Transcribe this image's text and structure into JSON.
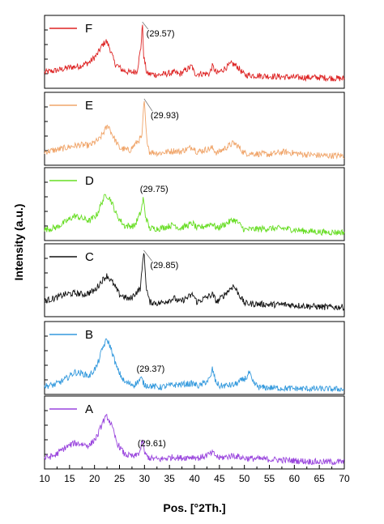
{
  "chart_data": {
    "type": "line",
    "xlabel": "Pos. [°2Th.]",
    "ylabel": "Intensity (a.u.)",
    "xlim": [
      10,
      70
    ],
    "x_ticks": [
      10,
      15,
      20,
      25,
      30,
      35,
      40,
      45,
      50,
      55,
      60,
      65,
      70
    ],
    "grid": false,
    "legend_placement": "top-left of each panel",
    "panels": [
      {
        "name": "F",
        "color": "#dd2222",
        "annotation": "(29.57)",
        "peak_x": 29.57,
        "profile": [
          [
            10,
            0.2
          ],
          [
            13,
            0.24
          ],
          [
            15,
            0.28
          ],
          [
            17,
            0.3
          ],
          [
            19,
            0.36
          ],
          [
            20.5,
            0.48
          ],
          [
            21.5,
            0.62
          ],
          [
            22.3,
            0.7
          ],
          [
            23.0,
            0.6
          ],
          [
            24,
            0.35
          ],
          [
            25.5,
            0.24
          ],
          [
            27,
            0.2
          ],
          [
            28.5,
            0.22
          ],
          [
            29.3,
            0.6
          ],
          [
            29.57,
            1.0
          ],
          [
            29.85,
            0.45
          ],
          [
            30.5,
            0.18
          ],
          [
            33,
            0.16
          ],
          [
            36,
            0.2
          ],
          [
            37,
            0.17
          ],
          [
            39.5,
            0.3
          ],
          [
            40,
            0.18
          ],
          [
            43,
            0.18
          ],
          [
            43.6,
            0.3
          ],
          [
            44.5,
            0.18
          ],
          [
            47.5,
            0.34
          ],
          [
            48.5,
            0.3
          ],
          [
            50,
            0.16
          ],
          [
            55,
            0.14
          ],
          [
            60,
            0.12
          ],
          [
            65,
            0.12
          ],
          [
            70,
            0.1
          ]
        ]
      },
      {
        "name": "E",
        "color": "#f0a56a",
        "annotation": "(29.93)",
        "peak_x": 29.93,
        "profile": [
          [
            10,
            0.16
          ],
          [
            13,
            0.2
          ],
          [
            15,
            0.24
          ],
          [
            17,
            0.27
          ],
          [
            19,
            0.26
          ],
          [
            21,
            0.36
          ],
          [
            22.2,
            0.52
          ],
          [
            22.8,
            0.58
          ],
          [
            23.5,
            0.44
          ],
          [
            25,
            0.22
          ],
          [
            27,
            0.18
          ],
          [
            29.5,
            0.4
          ],
          [
            29.93,
            1.0
          ],
          [
            30.4,
            0.4
          ],
          [
            31,
            0.16
          ],
          [
            33,
            0.14
          ],
          [
            36,
            0.18
          ],
          [
            37,
            0.16
          ],
          [
            39.7,
            0.24
          ],
          [
            40.5,
            0.16
          ],
          [
            43.6,
            0.22
          ],
          [
            44.5,
            0.14
          ],
          [
            47.8,
            0.3
          ],
          [
            48.6,
            0.26
          ],
          [
            50,
            0.14
          ],
          [
            55,
            0.12
          ],
          [
            58,
            0.16
          ],
          [
            62,
            0.12
          ],
          [
            66,
            0.1
          ],
          [
            70,
            0.1
          ]
        ]
      },
      {
        "name": "D",
        "color": "#66dd22",
        "annotation": "(29.75)",
        "peak_x": 29.75,
        "profile": [
          [
            10,
            0.12
          ],
          [
            12.5,
            0.16
          ],
          [
            14.5,
            0.26
          ],
          [
            16,
            0.34
          ],
          [
            17.5,
            0.3
          ],
          [
            19,
            0.26
          ],
          [
            20.5,
            0.36
          ],
          [
            21.5,
            0.56
          ],
          [
            22.3,
            0.68
          ],
          [
            23.2,
            0.6
          ],
          [
            24.5,
            0.34
          ],
          [
            26,
            0.18
          ],
          [
            28,
            0.18
          ],
          [
            29.3,
            0.4
          ],
          [
            29.75,
            0.62
          ],
          [
            30.2,
            0.34
          ],
          [
            31,
            0.14
          ],
          [
            33,
            0.14
          ],
          [
            36,
            0.2
          ],
          [
            37,
            0.14
          ],
          [
            39.7,
            0.22
          ],
          [
            40.5,
            0.14
          ],
          [
            43.6,
            0.22
          ],
          [
            44.5,
            0.14
          ],
          [
            47.8,
            0.28
          ],
          [
            48.6,
            0.24
          ],
          [
            50,
            0.12
          ],
          [
            55,
            0.14
          ],
          [
            58,
            0.14
          ],
          [
            62,
            0.1
          ],
          [
            66,
            0.08
          ],
          [
            70,
            0.08
          ]
        ]
      },
      {
        "name": "C",
        "color": "#111111",
        "annotation": "(29.85)",
        "peak_x": 29.85,
        "profile": [
          [
            10,
            0.2
          ],
          [
            12,
            0.24
          ],
          [
            14,
            0.3
          ],
          [
            16,
            0.32
          ],
          [
            18,
            0.3
          ],
          [
            20,
            0.36
          ],
          [
            21.5,
            0.52
          ],
          [
            22.5,
            0.6
          ],
          [
            23.5,
            0.5
          ],
          [
            25,
            0.3
          ],
          [
            27,
            0.22
          ],
          [
            29.2,
            0.4
          ],
          [
            29.85,
            1.0
          ],
          [
            30.4,
            0.4
          ],
          [
            31,
            0.18
          ],
          [
            33,
            0.16
          ],
          [
            36,
            0.24
          ],
          [
            37,
            0.18
          ],
          [
            39.7,
            0.3
          ],
          [
            40.5,
            0.18
          ],
          [
            43.6,
            0.3
          ],
          [
            44.5,
            0.18
          ],
          [
            47.8,
            0.44
          ],
          [
            48.8,
            0.32
          ],
          [
            50,
            0.16
          ],
          [
            55,
            0.14
          ],
          [
            58,
            0.14
          ],
          [
            62,
            0.12
          ],
          [
            66,
            0.1
          ],
          [
            70,
            0.1
          ]
        ]
      },
      {
        "name": "B",
        "color": "#3399dd",
        "annotation": "(29.37)",
        "peak_x": 29.37,
        "profile": [
          [
            10,
            0.08
          ],
          [
            12,
            0.1
          ],
          [
            14,
            0.18
          ],
          [
            16,
            0.3
          ],
          [
            17.5,
            0.28
          ],
          [
            19,
            0.24
          ],
          [
            20.5,
            0.4
          ],
          [
            21.7,
            0.7
          ],
          [
            22.5,
            0.82
          ],
          [
            23.2,
            0.7
          ],
          [
            24.5,
            0.36
          ],
          [
            26,
            0.14
          ],
          [
            28,
            0.1
          ],
          [
            29.37,
            0.2
          ],
          [
            30,
            0.1
          ],
          [
            33,
            0.06
          ],
          [
            36,
            0.1
          ],
          [
            39.7,
            0.12
          ],
          [
            41,
            0.08
          ],
          [
            43.2,
            0.2
          ],
          [
            43.6,
            0.36
          ],
          [
            44.2,
            0.16
          ],
          [
            45,
            0.08
          ],
          [
            48,
            0.1
          ],
          [
            50.5,
            0.22
          ],
          [
            51,
            0.3
          ],
          [
            51.6,
            0.14
          ],
          [
            53,
            0.06
          ],
          [
            60,
            0.04
          ],
          [
            70,
            0.03
          ]
        ]
      },
      {
        "name": "A",
        "color": "#9944dd",
        "annotation": "(29.61)",
        "peak_x": 29.61,
        "profile": [
          [
            10,
            0.12
          ],
          [
            12,
            0.16
          ],
          [
            14,
            0.28
          ],
          [
            16,
            0.36
          ],
          [
            17.5,
            0.34
          ],
          [
            19,
            0.32
          ],
          [
            20.5,
            0.46
          ],
          [
            21.7,
            0.7
          ],
          [
            22.5,
            0.78
          ],
          [
            23.3,
            0.66
          ],
          [
            24.5,
            0.36
          ],
          [
            26,
            0.18
          ],
          [
            28,
            0.14
          ],
          [
            29.1,
            0.22
          ],
          [
            29.61,
            0.4
          ],
          [
            30.1,
            0.18
          ],
          [
            31,
            0.12
          ],
          [
            33,
            0.1
          ],
          [
            36,
            0.14
          ],
          [
            37,
            0.12
          ],
          [
            39.7,
            0.14
          ],
          [
            41,
            0.12
          ],
          [
            43.6,
            0.2
          ],
          [
            45,
            0.12
          ],
          [
            47.8,
            0.16
          ],
          [
            50,
            0.12
          ],
          [
            55,
            0.1
          ],
          [
            60,
            0.08
          ],
          [
            65,
            0.06
          ],
          [
            70,
            0.06
          ]
        ]
      }
    ]
  }
}
